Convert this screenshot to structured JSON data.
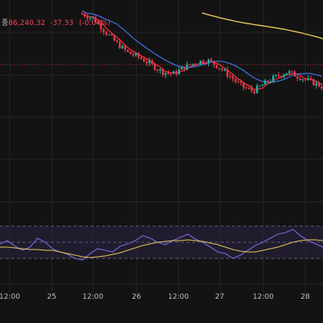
{
  "legend": {
    "close_prefix": "종",
    "close_value": "86,240.32",
    "change": "-37.33",
    "change_pct": "(-0.04%)"
  },
  "x_axis_labels": [
    "12:00",
    "25",
    "12:00",
    "26",
    "12:00",
    "27",
    "12:00",
    "28"
  ],
  "colors": {
    "background": "#131313",
    "grid": "#242424",
    "up_candle": "#22b3a0",
    "down_candle": "#e8394c",
    "ma_fast": "#ee2a36",
    "ma_mid": "#3d6bd6",
    "ma_slow": "#e3c35a",
    "oscillator_line": "#7c67d6",
    "oscillator_signal": "#e3c35a",
    "oscillator_band": "#2a2340",
    "price_line": "#b8323e"
  },
  "chart_data": {
    "type": "candlestick",
    "x_labels": [
      "12:00",
      "25",
      "12:00",
      "26",
      "12:00",
      "27",
      "12:00",
      "28"
    ],
    "price_reference_line": 86240.32,
    "price_estimates": [
      86800,
      86750,
      86620,
      86500,
      86400,
      86350,
      86280,
      86200,
      86180,
      86250,
      86300,
      86320,
      86250,
      86150,
      86050,
      86000,
      86080,
      86150,
      86200,
      86150,
      86100,
      86050
    ],
    "oscillator": {
      "upper_level": 70,
      "middle_level": 50,
      "lower_level": 30,
      "line": [
        48,
        52,
        45,
        40,
        44,
        55,
        50,
        42,
        38,
        35,
        30,
        28,
        36,
        42,
        40,
        38,
        45,
        48,
        52,
        58,
        55,
        50,
        47,
        52,
        56,
        60,
        54,
        50,
        44,
        38,
        36,
        30,
        34,
        40,
        46,
        50,
        55,
        60,
        62,
        66,
        58,
        52,
        48,
        44
      ],
      "signal": [
        44,
        44,
        43,
        42,
        41,
        41,
        40,
        40,
        38,
        36,
        34,
        32,
        31,
        32,
        33,
        35,
        37,
        40,
        43,
        46,
        48,
        50,
        51,
        52,
        52,
        53,
        52,
        51,
        49,
        47,
        44,
        41,
        39,
        38,
        38,
        40,
        42,
        44,
        47,
        50,
        52,
        53,
        53,
        52
      ]
    }
  }
}
